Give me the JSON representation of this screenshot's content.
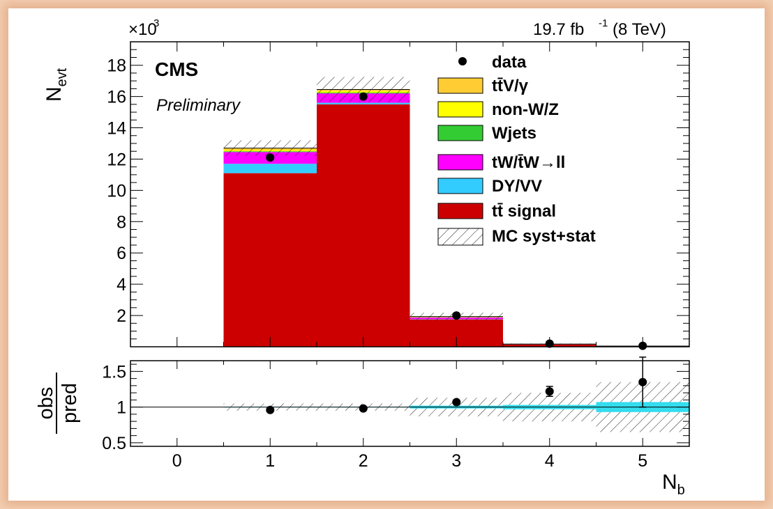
{
  "chart_data": {
    "type": "bar",
    "stacked": true,
    "experiment": "CMS",
    "status": "Preliminary",
    "lumi_label": "19.7 fb",
    "lumi_exp": "-1",
    "lumi_energy": "(8 TeV)",
    "y_multiplier_base": "×10",
    "y_multiplier_exp": "3",
    "ylabel_main": "N",
    "ylabel_sub": "evt",
    "xlabel_main": "N",
    "xlabel_sub": "b",
    "ratio_label_top": "obs",
    "ratio_label_bottom": "pred",
    "xlim": [
      -0.5,
      5.5
    ],
    "ylim": [
      0,
      19.5
    ],
    "ratio_ylim": [
      0.45,
      1.65
    ],
    "x_ticks": [
      "0",
      "1",
      "2",
      "3",
      "4",
      "5"
    ],
    "y_ticks": [
      "2",
      "4",
      "6",
      "8",
      "10",
      "12",
      "14",
      "16",
      "18"
    ],
    "ratio_ticks": [
      "0.5",
      "1",
      "1.5"
    ],
    "legend_position": "top-right",
    "categories": [
      "0",
      "1",
      "2",
      "3",
      "4",
      "5"
    ],
    "series": [
      {
        "name": "tt̄ signal",
        "color": "#cc0000",
        "values": [
          0,
          11.1,
          15.5,
          1.75,
          0.15,
          0.04
        ]
      },
      {
        "name": "DY/VV",
        "color": "#33ccff",
        "values": [
          0,
          0.6,
          0.1,
          0.02,
          0.005,
          0.002
        ]
      },
      {
        "name": "tW/t̄W→ll",
        "color": "#ff00ff",
        "values": [
          0,
          0.75,
          0.6,
          0.1,
          0.01,
          0.003
        ]
      },
      {
        "name": "Wjets",
        "color": "#33cc33",
        "values": [
          0,
          0.05,
          0.05,
          0.01,
          0.001,
          0.0005
        ]
      },
      {
        "name": "non-W/Z",
        "color": "#ffff00",
        "values": [
          0,
          0.1,
          0.1,
          0.02,
          0.002,
          0.0005
        ]
      },
      {
        "name": "tt̄V/γ",
        "color": "#ffcc33",
        "values": [
          0,
          0.1,
          0.1,
          0.03,
          0.005,
          0.001
        ]
      }
    ],
    "mc_uncertainty": [
      0,
      0.5,
      0.8,
      0.25,
      0.04,
      0.02
    ],
    "data": {
      "name": "data",
      "x": [
        1,
        2,
        3,
        4,
        5
      ],
      "y": [
        12.1,
        16.0,
        2.0,
        0.2,
        0.06
      ]
    },
    "ratio": {
      "x": [
        1,
        2,
        3,
        4,
        5
      ],
      "y": [
        0.96,
        0.98,
        1.07,
        1.22,
        1.35
      ],
      "err": [
        0.01,
        0.01,
        0.025,
        0.07,
        0.35
      ],
      "syst_band": [
        0.05,
        0.05,
        0.13,
        0.2,
        0.35
      ],
      "stat_band": [
        0.005,
        0.005,
        0.02,
        0.03,
        0.07
      ]
    },
    "mc_band_label": "MC syst+stat",
    "legend_order": [
      "data",
      "tt̄V/γ",
      "non-W/Z",
      "Wjets",
      "tW/t̄W→ll",
      "DY/VV",
      "tt̄ signal",
      "MC syst+stat"
    ]
  }
}
